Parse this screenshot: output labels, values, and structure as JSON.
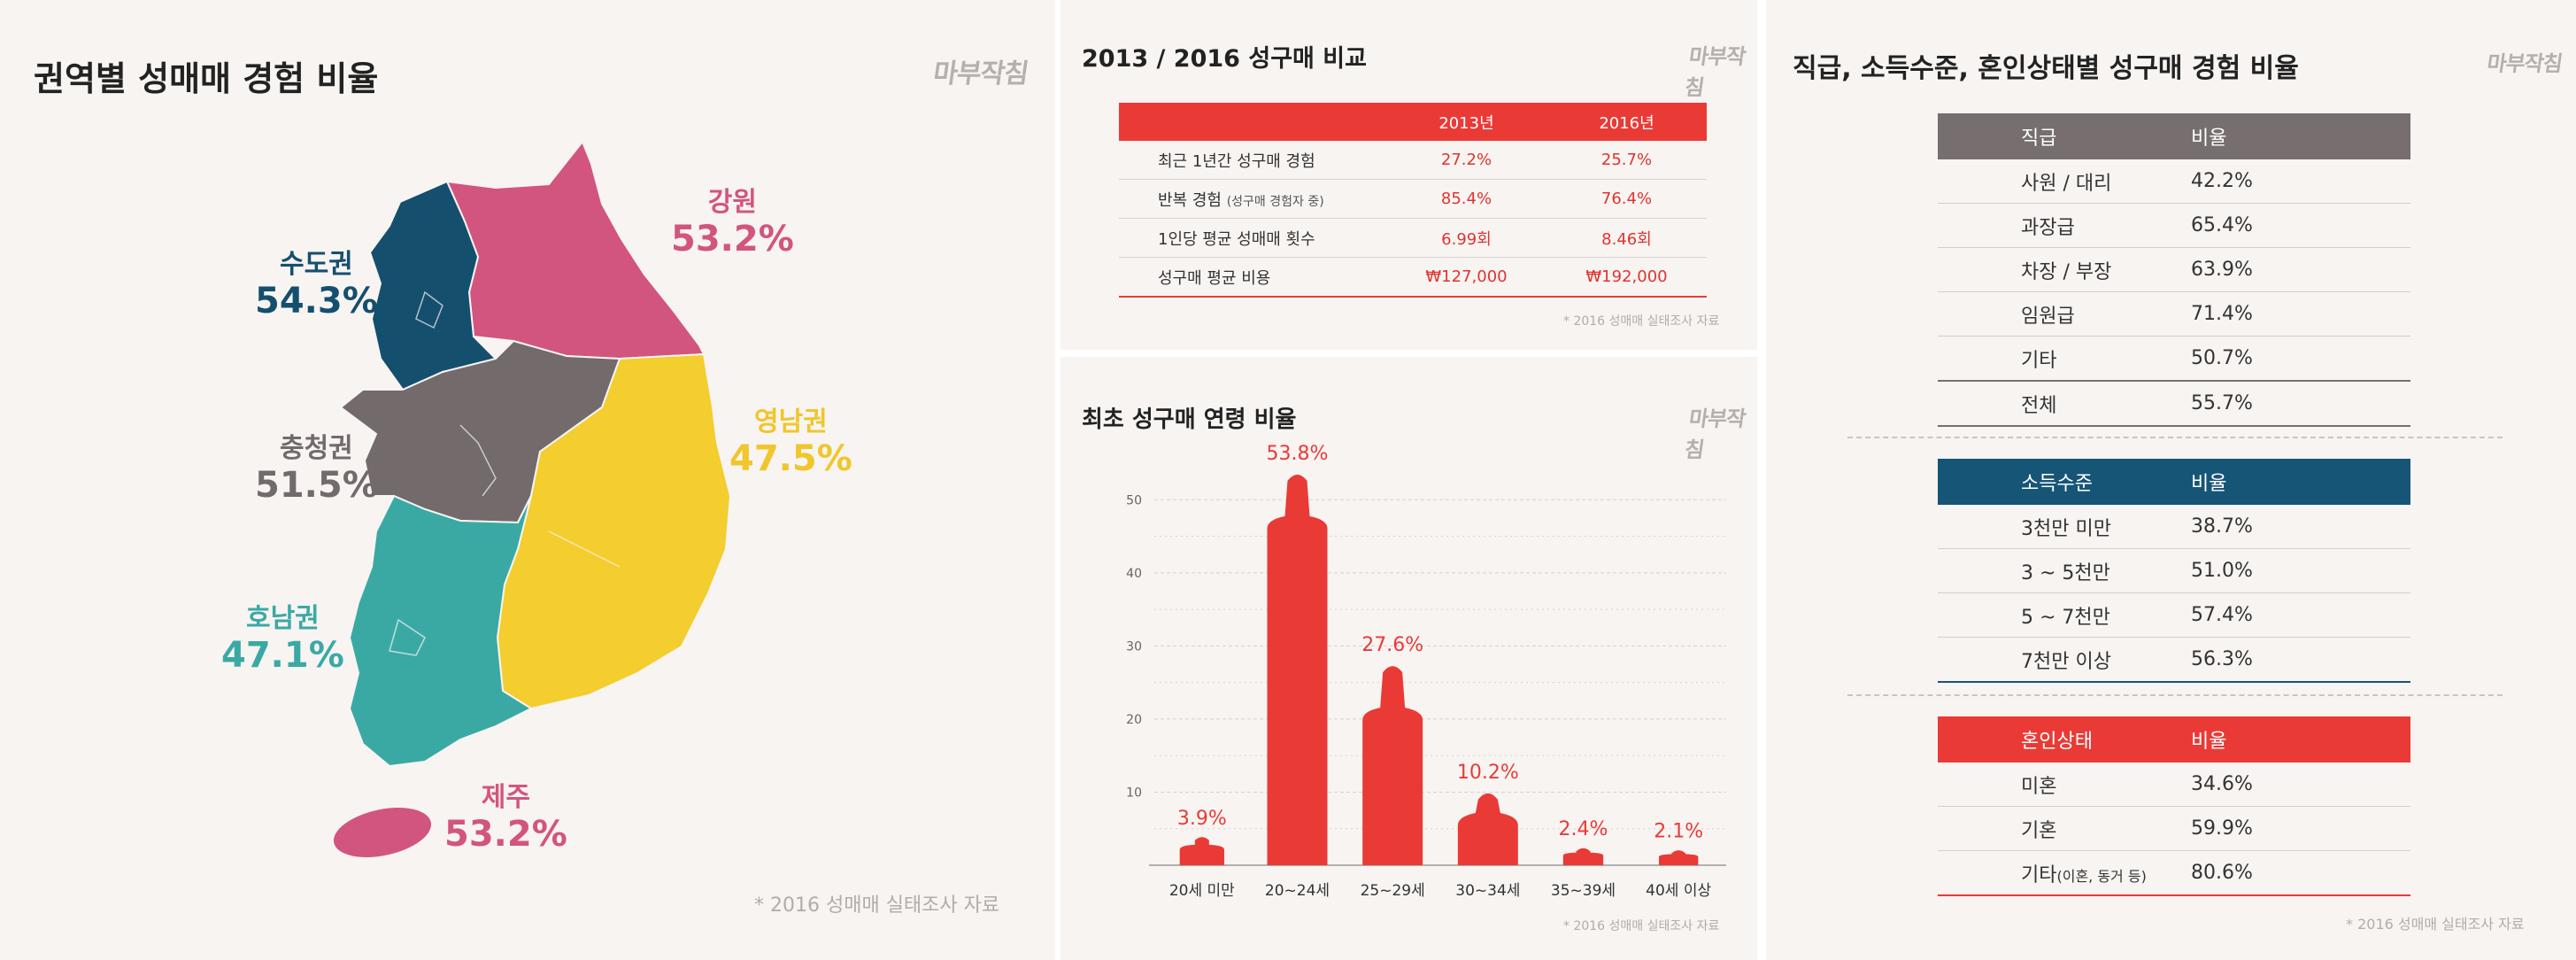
{
  "map_panel": {
    "title": "권역별 성매매 경험 비율",
    "logo": "마부작침",
    "source": "* 2016 성매매 실태조사 자료",
    "regions": [
      {
        "name": "수도권",
        "value": "54.3%",
        "color": "#154f6e"
      },
      {
        "name": "강원",
        "value": "53.2%",
        "color": "#d2557f"
      },
      {
        "name": "충청권",
        "value": "51.5%",
        "color": "#736a6c"
      },
      {
        "name": "영남권",
        "value": "47.5%",
        "color": "#f4cd2e"
      },
      {
        "name": "호남권",
        "value": "47.1%",
        "color": "#3aa9a4"
      },
      {
        "name": "제주",
        "value": "53.2%",
        "color": "#d2557f"
      }
    ]
  },
  "compare_panel": {
    "title": "2013 / 2016 성구매 비교",
    "logo": "마부작침",
    "source": "* 2016 성매매 실태조사 자료",
    "headers": [
      "",
      "2013년",
      "2016년"
    ],
    "rows": [
      {
        "label": "최근 1년간 성구매 경험",
        "sub": "",
        "v2013": "27.2%",
        "v2016": "25.7%"
      },
      {
        "label": "반복 경험",
        "sub": "(성구매 경험자 중)",
        "v2013": "85.4%",
        "v2016": "76.4%"
      },
      {
        "label": "1인당 평균 성매매 횟수",
        "sub": "",
        "v2013": "6.99회",
        "v2016": "8.46회"
      },
      {
        "label": "성구매 평균 비용",
        "sub": "",
        "v2013": "₩127,000",
        "v2016": "₩192,000"
      }
    ]
  },
  "age_panel": {
    "title": "최초 성구매 연령 비율",
    "logo": "마부작침",
    "source": "* 2016 성매매 실태조사 자료"
  },
  "chart_data": {
    "type": "bar",
    "title": "최초 성구매 연령 비율",
    "categories": [
      "20세 미만",
      "20~24세",
      "25~29세",
      "30~34세",
      "35~39세",
      "40세 이상"
    ],
    "values": [
      3.9,
      53.8,
      27.6,
      10.2,
      2.4,
      2.1
    ],
    "labels": [
      "3.9%",
      "53.8%",
      "27.6%",
      "10.2%",
      "2.4%",
      "2.1%"
    ],
    "yticks": [
      "10",
      "20",
      "30",
      "40",
      "50"
    ],
    "ylim": [
      0,
      55
    ],
    "grid": true,
    "color": "#ea3a36",
    "xlabel": "",
    "ylabel": ""
  },
  "rank_panel": {
    "title": "직급, 소득수준, 혼인상태별 성구매 경험 비율",
    "logo": "마부작침",
    "source": "* 2016 성매매 실태조사 자료",
    "tables": [
      {
        "header": [
          "직급",
          "비율"
        ],
        "color": "#766e6f",
        "rows": [
          [
            "사원 / 대리",
            "42.2%"
          ],
          [
            "과장급",
            "65.4%"
          ],
          [
            "차장 / 부장",
            "63.9%"
          ],
          [
            "임원급",
            "71.4%"
          ],
          [
            "기타",
            "50.7%"
          ],
          [
            "전체",
            "55.7%"
          ]
        ]
      },
      {
        "header": [
          "소득수준",
          "비율"
        ],
        "color": "#175577",
        "rows": [
          [
            "3천만 미만",
            "38.7%"
          ],
          [
            "3 ~ 5천만",
            "51.0%"
          ],
          [
            "5 ~ 7천만",
            "57.4%"
          ],
          [
            "7천만 이상",
            "56.3%"
          ]
        ]
      },
      {
        "header": [
          "혼인상태",
          "비율"
        ],
        "color": "#ea3a36",
        "rows": [
          [
            "미혼",
            "34.6%"
          ],
          [
            "기혼",
            "59.9%"
          ],
          [
            "기타",
            "80.6%"
          ]
        ],
        "last_sub": "(이혼, 동거 등)"
      }
    ]
  }
}
